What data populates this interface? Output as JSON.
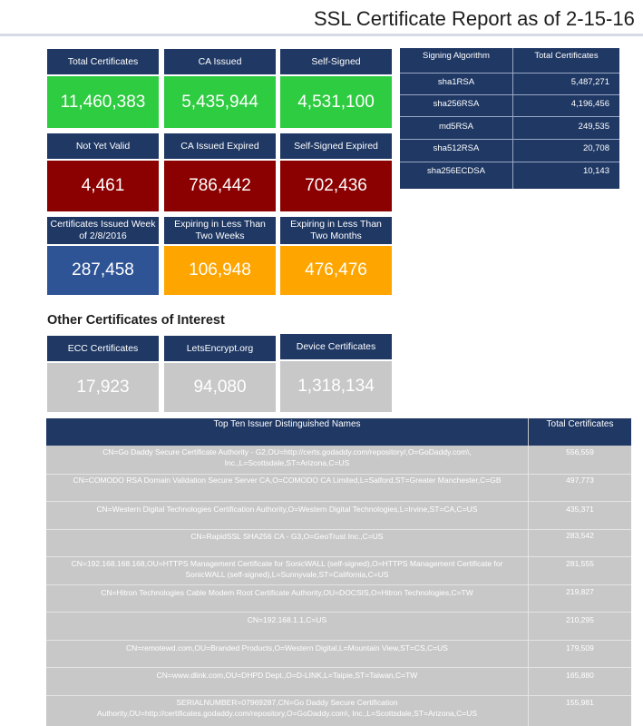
{
  "title": "SSL Certificate Report as of 2-15-16",
  "summary_tiles": [
    {
      "label": "Total Certificates",
      "value": "11,460,383",
      "color": "#2ecc40"
    },
    {
      "label": "CA Issued",
      "value": "5,435,944",
      "color": "#2ecc40"
    },
    {
      "label": "Self-Signed",
      "value": "4,531,100",
      "color": "#2ecc40"
    },
    {
      "label": "Not Yet Valid",
      "value": "4,461",
      "color": "#8b0000"
    },
    {
      "label": "CA Issued Expired",
      "value": "786,442",
      "color": "#8b0000"
    },
    {
      "label": "Self-Signed Expired",
      "value": "702,436",
      "color": "#8b0000"
    },
    {
      "label": "Certificates Issued Week of 2/8/2016",
      "value": "287,458",
      "color": "#2f5496"
    },
    {
      "label": "Expiring in Less Than Two Weeks",
      "value": "106,948",
      "color": "#ffa500"
    },
    {
      "label": "Expiring in Less Than Two Months",
      "value": "476,476",
      "color": "#ffa500"
    }
  ],
  "algorithms": {
    "headers": [
      "Signing Algorithm",
      "Total Certificates"
    ],
    "rows": [
      [
        "sha1RSA",
        "5,487,271"
      ],
      [
        "sha256RSA",
        "4,196,456"
      ],
      [
        "md5RSA",
        "249,535"
      ],
      [
        "sha512RSA",
        "20,708"
      ],
      [
        "sha256ECDSA",
        "10,143"
      ]
    ]
  },
  "other_section_title": "Other Certificates of Interest",
  "other_tiles": [
    {
      "label": "ECC Certificates",
      "value": "17,923"
    },
    {
      "label": "LetsEncrypt.org",
      "value": "94,080"
    },
    {
      "label": "Device Certificates",
      "value": "1,318,134"
    }
  ],
  "issuers": {
    "headers": [
      "Top Ten Issuer Distinguished Names",
      "Total Certificates"
    ],
    "rows": [
      {
        "lines": [
          "CN=Go Daddy Secure Certificate Authority - G2,OU=http://certs.godaddy.com/repository/,O=GoDaddy.com\\,",
          "Inc.,L=Scottsdale,ST=Arizona,C=US"
        ],
        "total": "556,559"
      },
      {
        "lines": [
          "CN=COMODO RSA Domain Validation Secure Server CA,O=COMODO CA Limited,L=Salford,ST=Greater Manchester,C=GB"
        ],
        "total": "497,773"
      },
      {
        "lines": [
          "CN=Western Digital Technologies Certification Authority,O=Western Digital Technologies,L=Irvine,ST=CA,C=US"
        ],
        "total": "435,371"
      },
      {
        "lines": [
          "CN=RapidSSL SHA256 CA - G3,O=GeoTrust Inc.,C=US"
        ],
        "total": "283,542"
      },
      {
        "lines": [
          "CN=192.168.168.168,OU=HTTPS Management Certificate for SonicWALL (self-signed),O=HTTPS Management Certificate for",
          "SonicWALL (self-signed),L=Sunnyvale,ST=California,C=US"
        ],
        "total": "281,555"
      },
      {
        "lines": [
          "CN=Hitron Technologies Cable Modem Root Certificate Authority,OU=DOCSIS,O=Hitron Technologies,C=TW"
        ],
        "total": "219,827"
      },
      {
        "lines": [
          "CN=192.168.1.1,C=US"
        ],
        "total": "210,295"
      },
      {
        "lines": [
          "CN=remotewd.com,OU=Branded Products,O=Western Digital,L=Mountain View,ST=CS,C=US"
        ],
        "total": "179,509"
      },
      {
        "lines": [
          "CN=www.dlink.com,OU=DHPD Dept.,O=D-LINK,L=Taipie,ST=Taiwan,C=TW"
        ],
        "total": "165,880"
      },
      {
        "lines": [
          "SERIALNUMBER=07969287,CN=Go Daddy Secure Certification",
          "Authority,OU=http://certificates.godaddy.com/repository,O=GoDaddy.com\\, Inc.,L=Scottsdale,ST=Arizona,C=US"
        ],
        "total": "155,981"
      }
    ]
  }
}
